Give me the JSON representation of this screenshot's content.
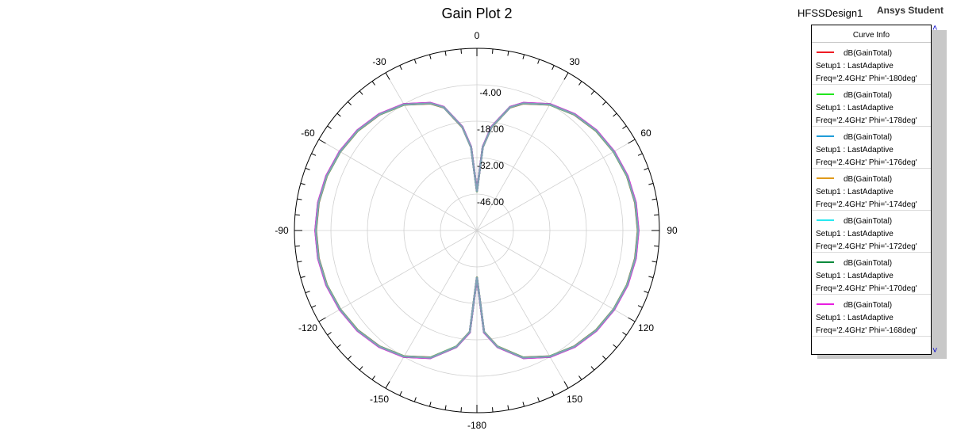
{
  "design_name": "HFSSDesign1",
  "watermark": "Ansys Student",
  "legend": {
    "header": "Curve Info",
    "scroll_up_icon": "chevron-up-icon",
    "scroll_down_icon": "chevron-down-icon",
    "entries": [
      {
        "name": "dB(GainTotal)",
        "setup": "Setup1 : LastAdaptive",
        "freq": "Freq='2.4GHz' Phi='-180deg'",
        "color": "#ee1c24"
      },
      {
        "name": "dB(GainTotal)",
        "setup": "Setup1 : LastAdaptive",
        "freq": "Freq='2.4GHz' Phi='-178deg'",
        "color": "#22e61e"
      },
      {
        "name": "dB(GainTotal)",
        "setup": "Setup1 : LastAdaptive",
        "freq": "Freq='2.4GHz' Phi='-176deg'",
        "color": "#1f9cd8"
      },
      {
        "name": "dB(GainTotal)",
        "setup": "Setup1 : LastAdaptive",
        "freq": "Freq='2.4GHz' Phi='-174deg'",
        "color": "#e09a1a"
      },
      {
        "name": "dB(GainTotal)",
        "setup": "Setup1 : LastAdaptive",
        "freq": "Freq='2.4GHz' Phi='-172deg'",
        "color": "#28e8f0"
      },
      {
        "name": "dB(GainTotal)",
        "setup": "Setup1 : LastAdaptive",
        "freq": "Freq='2.4GHz' Phi='-170deg'",
        "color": "#0a8a3c"
      },
      {
        "name": "dB(GainTotal)",
        "setup": "Setup1 : LastAdaptive",
        "freq": "Freq='2.4GHz' Phi='-168deg'",
        "color": "#e81ee0"
      }
    ]
  },
  "chart_data": {
    "type": "polar",
    "title": "Gain Plot 2",
    "angle_labels": [
      {
        "angle": 0,
        "label": "0"
      },
      {
        "angle": 30,
        "label": "30"
      },
      {
        "angle": 60,
        "label": "60"
      },
      {
        "angle": 90,
        "label": "90"
      },
      {
        "angle": 120,
        "label": "120"
      },
      {
        "angle": 150,
        "label": "150"
      },
      {
        "angle": 180,
        "label": "-180"
      },
      {
        "angle": -150,
        "label": "-150"
      },
      {
        "angle": -120,
        "label": "-120"
      },
      {
        "angle": -90,
        "label": "-90"
      },
      {
        "angle": -60,
        "label": "-60"
      },
      {
        "angle": -30,
        "label": "-30"
      }
    ],
    "radial_range": [
      -60,
      10
    ],
    "radial_ticks": [
      {
        "value": 10,
        "label": ""
      },
      {
        "value": -4,
        "label": "-4.00"
      },
      {
        "value": -18,
        "label": "-18.00"
      },
      {
        "value": -32,
        "label": "-32.00"
      },
      {
        "value": -46,
        "label": "-46.00"
      },
      {
        "value": -60,
        "label": ""
      }
    ],
    "grid": true,
    "series_angles": [
      0,
      4,
      8,
      15,
      20,
      30,
      40,
      50,
      60,
      70,
      80,
      90,
      100,
      110,
      120,
      130,
      140,
      150,
      160,
      170,
      176,
      180
    ],
    "series_values": [
      -45,
      -28,
      -20,
      -11.1,
      -8.1,
      -4.2,
      -1.9,
      -0.4,
      0.5,
      1.2,
      1.6,
      1.7,
      1.6,
      1.2,
      0.5,
      -0.4,
      -1.9,
      -4.2,
      -8.1,
      -14.8,
      -21,
      -42
    ],
    "series": [
      {
        "name": "dB(GainTotal) Phi='-180deg'",
        "color": "#ee1c24",
        "offset": 0.0
      },
      {
        "name": "dB(GainTotal) Phi='-178deg'",
        "color": "#22e61e",
        "offset": 0.05
      },
      {
        "name": "dB(GainTotal) Phi='-176deg'",
        "color": "#1f9cd8",
        "offset": 0.1
      },
      {
        "name": "dB(GainTotal) Phi='-174deg'",
        "color": "#e09a1a",
        "offset": 0.15
      },
      {
        "name": "dB(GainTotal) Phi='-172deg'",
        "color": "#28e8f0",
        "offset": 0.2
      },
      {
        "name": "dB(GainTotal) Phi='-170deg'",
        "color": "#0a8a3c",
        "offset": 0.25
      },
      {
        "name": "dB(GainTotal) Phi='-168deg'",
        "color": "#e81ee0",
        "offset": 0.3
      }
    ],
    "overlay_color": "#7fa3b5"
  }
}
